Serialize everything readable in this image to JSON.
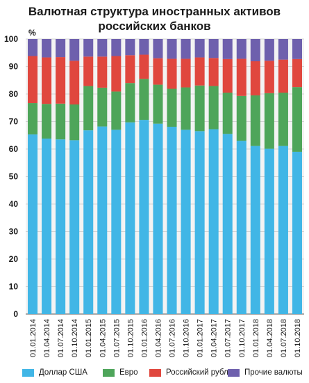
{
  "chart_data": {
    "type": "bar",
    "stacked": true,
    "title_line1": "Валютная структура иностранных активов",
    "title_line2": "российских банков",
    "unit_label": "%",
    "ylim": [
      0,
      100
    ],
    "yticks": [
      0,
      10,
      20,
      30,
      40,
      50,
      60,
      70,
      80,
      90,
      100
    ],
    "grid": true,
    "legend_position": "bottom",
    "categories": [
      "01.01.2014",
      "01.04.2014",
      "01.07.2014",
      "01.10.2014",
      "01.01.2015",
      "01.04.2015",
      "01.07.2015",
      "01.10.2015",
      "01.01.2016",
      "01.04.2016",
      "01.07.2016",
      "01.10.2016",
      "01.01.2017",
      "01.04.2017",
      "01.07.2017",
      "01.10.2017",
      "01.01.2018",
      "01.04.2018",
      "01.07.2018",
      "01.10.2018"
    ],
    "series": [
      {
        "name": "Доллар США",
        "color": "#41b6e6",
        "values": [
          65.3,
          63.8,
          63.5,
          63.2,
          66.8,
          68.2,
          67.0,
          69.7,
          70.6,
          69.2,
          68.1,
          67.0,
          66.5,
          67.2,
          65.5,
          63.0,
          61.1,
          60.1,
          61.1,
          59.0
        ]
      },
      {
        "name": "Евро",
        "color": "#4ea55a",
        "values": [
          11.4,
          12.6,
          13.0,
          13.0,
          16.1,
          14.1,
          13.9,
          14.3,
          14.9,
          14.2,
          13.8,
          15.4,
          16.6,
          15.7,
          15.0,
          16.3,
          18.4,
          20.2,
          19.4,
          23.5
        ]
      },
      {
        "name": "Российский рубль",
        "color": "#e0473e",
        "values": [
          17.1,
          16.9,
          16.9,
          15.9,
          10.7,
          11.3,
          12.9,
          10.1,
          8.8,
          9.6,
          10.9,
          10.4,
          10.2,
          10.2,
          12.2,
          13.5,
          12.4,
          11.8,
          12.0,
          10.2
        ]
      },
      {
        "name": "Прочие валюты",
        "color": "#6e60ad",
        "values": [
          6.2,
          6.7,
          6.6,
          7.9,
          6.4,
          6.4,
          6.2,
          5.9,
          5.7,
          7.0,
          7.2,
          7.2,
          6.7,
          6.9,
          7.3,
          7.2,
          8.1,
          7.9,
          7.5,
          7.3
        ]
      }
    ]
  }
}
